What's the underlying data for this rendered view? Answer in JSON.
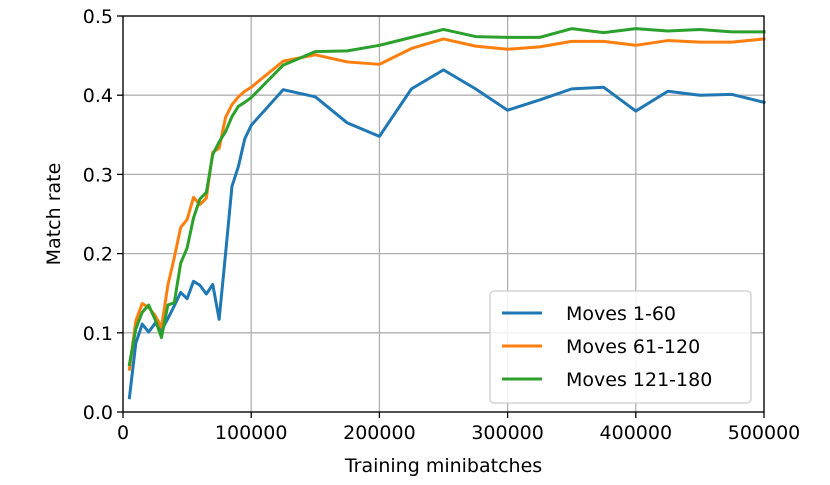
{
  "chart_data": {
    "type": "line",
    "xlabel": "Training minibatches",
    "ylabel": "Match rate",
    "xlim": [
      0,
      500000
    ],
    "ylim": [
      0.0,
      0.5
    ],
    "xticks": [
      0,
      100000,
      200000,
      300000,
      400000,
      500000
    ],
    "xtick_labels": [
      "0",
      "100000",
      "200000",
      "300000",
      "400000",
      "500000"
    ],
    "yticks": [
      0.0,
      0.1,
      0.2,
      0.3,
      0.4,
      0.5
    ],
    "ytick_labels": [
      "0.0",
      "0.1",
      "0.2",
      "0.3",
      "0.4",
      "0.5"
    ],
    "grid": true,
    "legend_position": "lower-right",
    "series": [
      {
        "name": "Moves 1-60",
        "color": "#1f77b4",
        "x": [
          5000,
          10000,
          15000,
          20000,
          25000,
          30000,
          35000,
          40000,
          45000,
          50000,
          55000,
          60000,
          65000,
          70000,
          75000,
          80000,
          85000,
          90000,
          95000,
          100000,
          125000,
          150000,
          175000,
          200000,
          225000,
          250000,
          275000,
          300000,
          325000,
          350000,
          375000,
          400000,
          425000,
          450000,
          475000,
          500000
        ],
        "y": [
          0.018,
          0.087,
          0.111,
          0.101,
          0.112,
          0.103,
          0.118,
          0.134,
          0.151,
          0.143,
          0.165,
          0.16,
          0.149,
          0.161,
          0.117,
          0.2,
          0.285,
          0.31,
          0.345,
          0.362,
          0.407,
          0.398,
          0.365,
          0.348,
          0.408,
          0.432,
          0.408,
          0.381,
          0.394,
          0.408,
          0.41,
          0.38,
          0.405,
          0.4,
          0.401,
          0.391
        ]
      },
      {
        "name": "Moves 61-120",
        "color": "#ff7f0e",
        "x": [
          5000,
          10000,
          15000,
          20000,
          25000,
          30000,
          35000,
          40000,
          45000,
          50000,
          55000,
          60000,
          65000,
          70000,
          75000,
          80000,
          85000,
          90000,
          95000,
          100000,
          125000,
          150000,
          175000,
          200000,
          225000,
          250000,
          275000,
          300000,
          325000,
          350000,
          375000,
          400000,
          425000,
          450000,
          475000,
          500000
        ],
        "y": [
          0.054,
          0.115,
          0.137,
          0.132,
          0.122,
          0.107,
          0.16,
          0.195,
          0.233,
          0.243,
          0.271,
          0.262,
          0.27,
          0.328,
          0.333,
          0.372,
          0.388,
          0.398,
          0.405,
          0.41,
          0.443,
          0.451,
          0.442,
          0.439,
          0.459,
          0.471,
          0.462,
          0.458,
          0.461,
          0.468,
          0.468,
          0.463,
          0.469,
          0.467,
          0.467,
          0.471
        ]
      },
      {
        "name": "Moves 121-180",
        "color": "#2ca02c",
        "x": [
          5000,
          10000,
          15000,
          20000,
          25000,
          30000,
          35000,
          40000,
          45000,
          50000,
          55000,
          60000,
          65000,
          70000,
          75000,
          80000,
          85000,
          90000,
          95000,
          100000,
          125000,
          150000,
          175000,
          200000,
          225000,
          250000,
          275000,
          300000,
          325000,
          350000,
          375000,
          400000,
          425000,
          450000,
          475000,
          500000
        ],
        "y": [
          0.06,
          0.105,
          0.126,
          0.135,
          0.117,
          0.094,
          0.135,
          0.138,
          0.188,
          0.207,
          0.245,
          0.269,
          0.277,
          0.325,
          0.341,
          0.354,
          0.373,
          0.386,
          0.391,
          0.397,
          0.438,
          0.455,
          0.456,
          0.463,
          0.473,
          0.483,
          0.474,
          0.473,
          0.473,
          0.484,
          0.479,
          0.484,
          0.481,
          0.483,
          0.48,
          0.48
        ]
      }
    ]
  }
}
